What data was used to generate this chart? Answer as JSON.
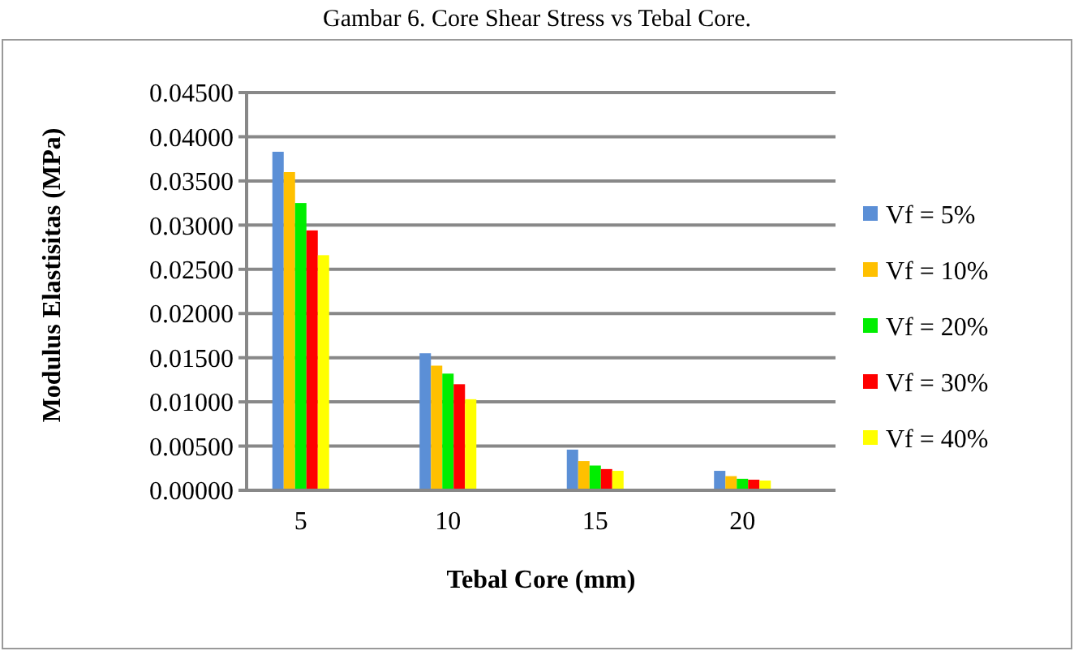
{
  "chart_data": {
    "type": "bar",
    "title": "Gambar 6. Core Shear Stress vs Tebal Core.",
    "xlabel": "Tebal Core (mm)",
    "ylabel": "Modulus Elastisitas (MPa)",
    "categories": [
      "5",
      "10",
      "15",
      "20"
    ],
    "series": [
      {
        "name": "Vf = 5%",
        "color": "#5b8fd6",
        "values": [
          0.0383,
          0.0155,
          0.0046,
          0.0022
        ]
      },
      {
        "name": "Vf = 10%",
        "color": "#ffc000",
        "values": [
          0.036,
          0.0141,
          0.0033,
          0.0016
        ]
      },
      {
        "name": "Vf = 20%",
        "color": "#00ee00",
        "values": [
          0.0325,
          0.0132,
          0.0028,
          0.0013
        ]
      },
      {
        "name": "Vf = 30%",
        "color": "#ff0000",
        "values": [
          0.0294,
          0.012,
          0.0024,
          0.0012
        ]
      },
      {
        "name": "Vf = 40%",
        "color": "#ffff00",
        "values": [
          0.0266,
          0.0103,
          0.0022,
          0.0011
        ]
      }
    ],
    "ylim": [
      0,
      0.045
    ],
    "yticks": [
      {
        "value": 0,
        "label": "0.00000"
      },
      {
        "value": 0.005,
        "label": "0.00500"
      },
      {
        "value": 0.01,
        "label": "0.01000"
      },
      {
        "value": 0.015,
        "label": "0.01500"
      },
      {
        "value": 0.02,
        "label": "0.02000"
      },
      {
        "value": 0.025,
        "label": "0.02500"
      },
      {
        "value": 0.03,
        "label": "0.03000"
      },
      {
        "value": 0.035,
        "label": "0.03500"
      },
      {
        "value": 0.04,
        "label": "0.04000"
      },
      {
        "value": 0.045,
        "label": "0.04500"
      }
    ],
    "grid": "y",
    "legend": "right"
  }
}
